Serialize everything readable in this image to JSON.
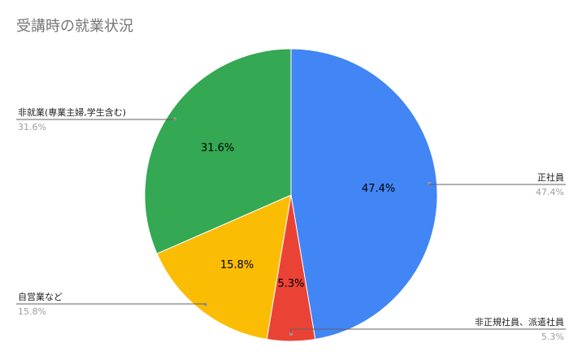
{
  "chart_data": {
    "type": "pie",
    "title": "受講時の就業状況",
    "slices": [
      {
        "label": "正社員",
        "value": 47.4,
        "display": "47.4%",
        "color": "#4285f4"
      },
      {
        "label": "非正規社員、派遣社員",
        "value": 5.3,
        "display": "5.3%",
        "color": "#ea4335"
      },
      {
        "label": "自営業など",
        "value": 15.8,
        "display": "15.8%",
        "color": "#fbbc04"
      },
      {
        "label": "非就業(専業主婦,学生含む)",
        "value": 31.6,
        "display": "31.6%",
        "color": "#34a853"
      }
    ],
    "legend": "callout-labels"
  }
}
